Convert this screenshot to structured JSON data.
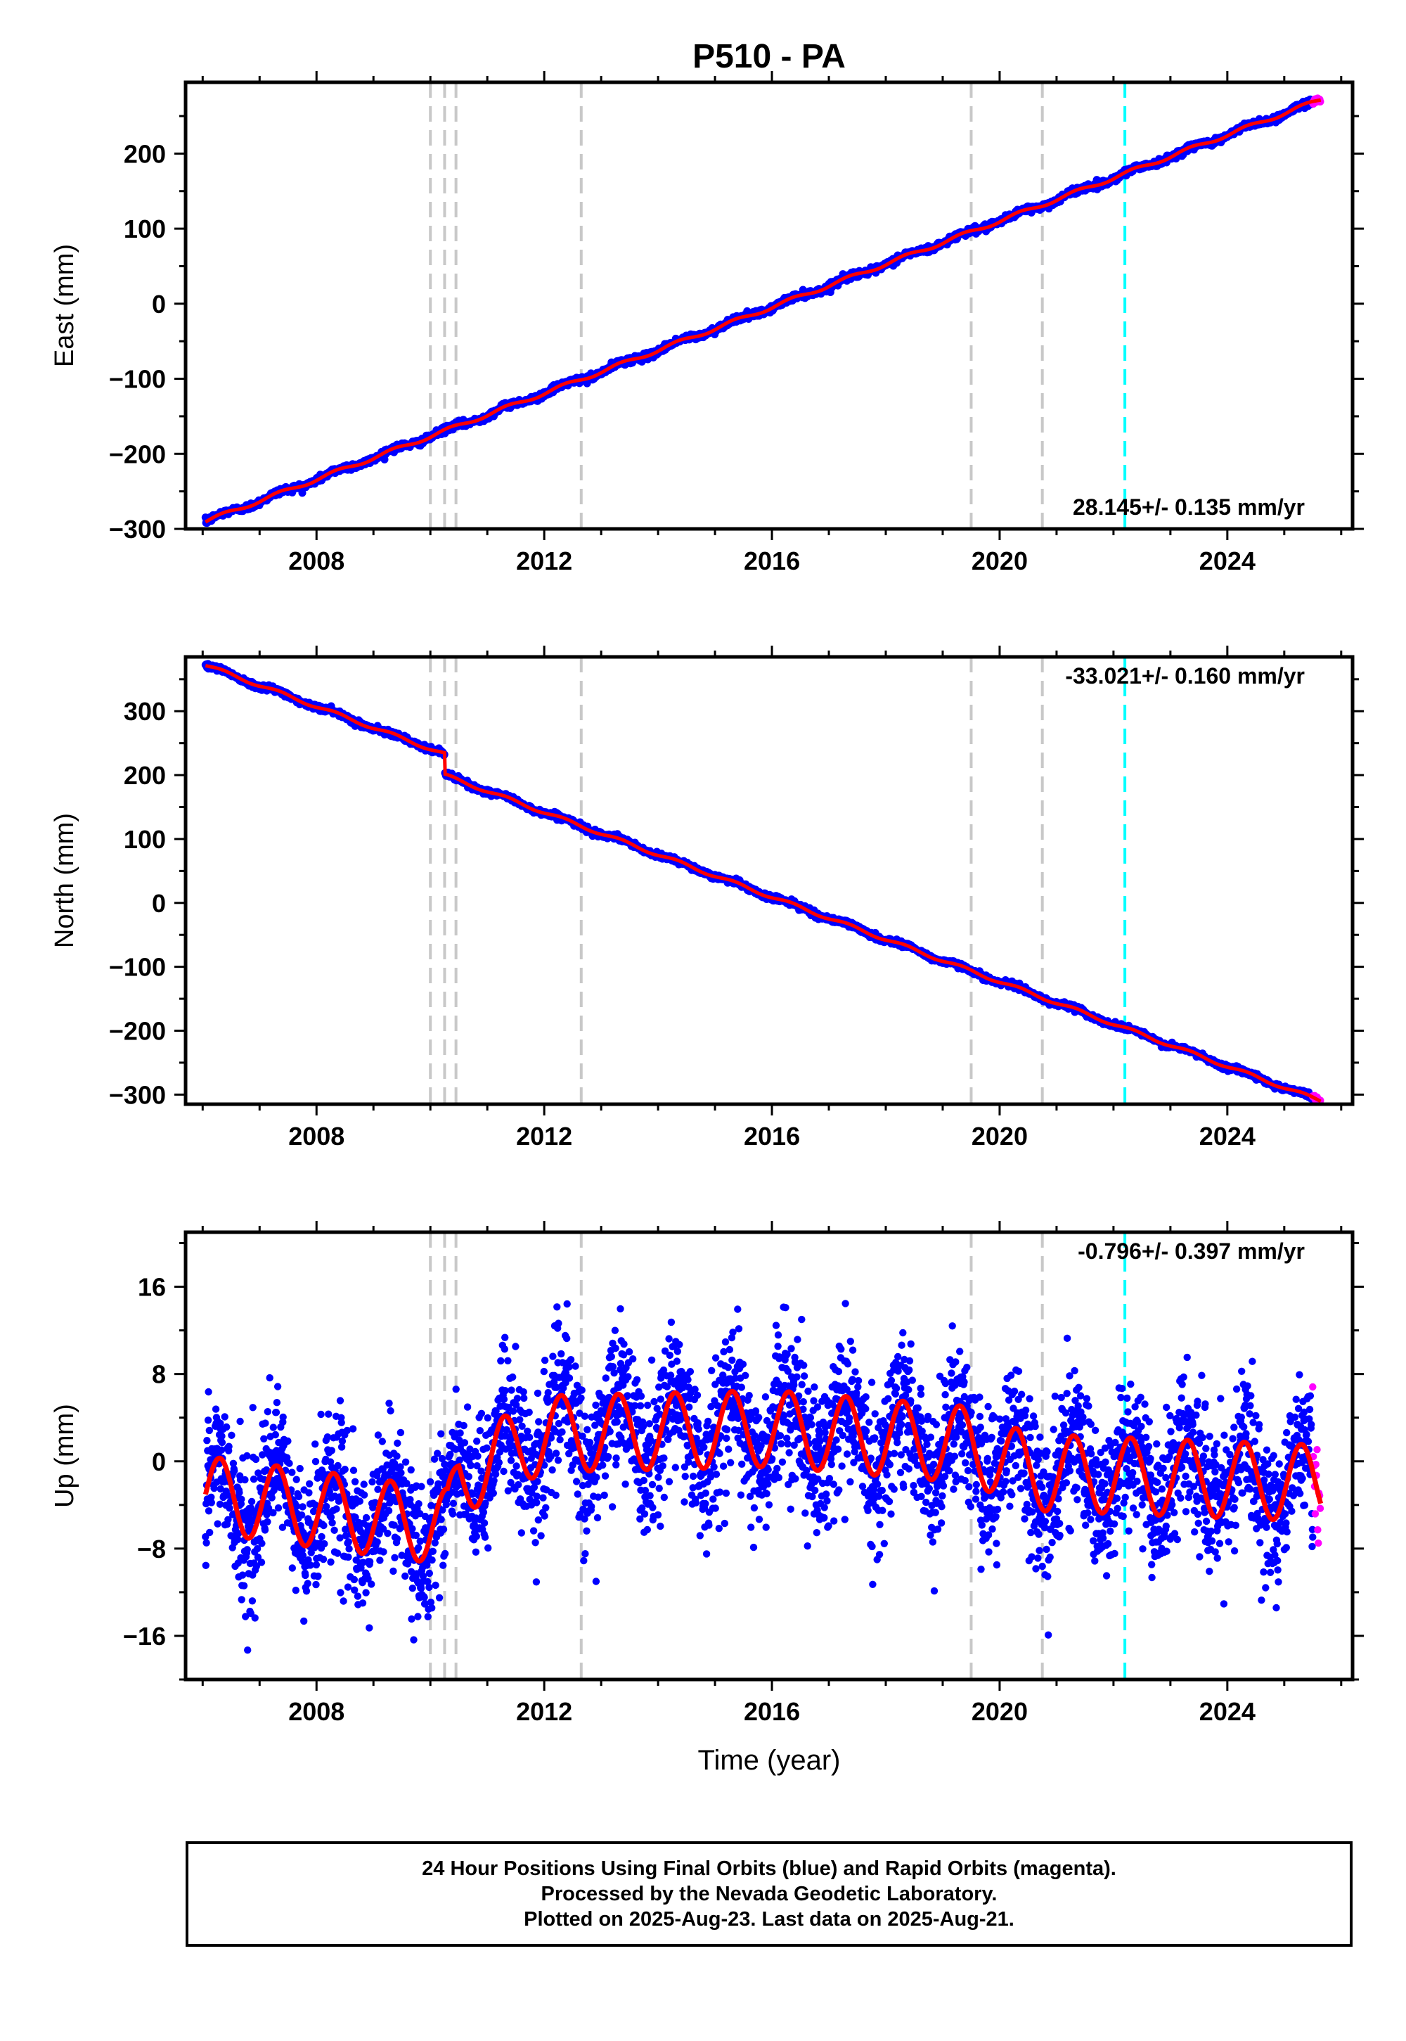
{
  "title": "P510 - PA",
  "colors": {
    "final_orbits": "#0000ff",
    "rapid_orbits": "#ff00ff",
    "model_fit": "#ff0000",
    "equipment_change": "#c8c8c8",
    "earthquake": "#00ffff"
  },
  "caption": [
    "24 Hour Positions Using Final Orbits (blue) and Rapid Orbits (magenta).",
    "Processed by the Nevada Geodetic Laboratory.",
    "Plotted on 2025-Aug-23. Last data on 2025-Aug-21."
  ],
  "chart_data": [
    {
      "type": "scatter",
      "component": "east",
      "ylabel": "East (mm)",
      "xlabel": "",
      "xlim": [
        2005.7,
        2026.2
      ],
      "ylim": [
        -300,
        295
      ],
      "xticks": [
        2008,
        2012,
        2016,
        2020,
        2024
      ],
      "yticks": [
        -300,
        -200,
        -100,
        0,
        100,
        200
      ],
      "ytick_labels": [
        "−300",
        "−200",
        "−100",
        "0",
        "100",
        "200"
      ],
      "rate_label": "28.145+/- 0.135 mm/yr",
      "series": [
        {
          "role": "final_orbits",
          "x_start": 2006.05,
          "x_end": 2025.5,
          "y_start": -290,
          "y_end": 268
        },
        {
          "role": "rapid_orbits",
          "x_start": 2025.5,
          "x_end": 2025.64,
          "y_start": 268,
          "y_end": 280
        },
        {
          "role": "model_fit",
          "x_start": 2006.05,
          "x_end": 2025.64,
          "y_start": -290,
          "y_end": 272
        }
      ],
      "dashed_lines_equipment": [
        2010.0,
        2010.25,
        2010.45,
        2012.65,
        2019.5,
        2020.75
      ],
      "dashed_lines_earthquake": [
        2022.2
      ]
    },
    {
      "type": "scatter",
      "component": "north",
      "ylabel": "North (mm)",
      "xlabel": "",
      "xlim": [
        2005.7,
        2026.2
      ],
      "ylim": [
        -315,
        385
      ],
      "xticks": [
        2008,
        2012,
        2016,
        2020,
        2024
      ],
      "yticks": [
        -300,
        -200,
        -100,
        0,
        100,
        200,
        300
      ],
      "ytick_labels": [
        "−300",
        "−200",
        "−100",
        "0",
        "100",
        "200",
        "300"
      ],
      "rate_label": "-33.021+/- 0.160 mm/yr",
      "series": [
        {
          "role": "final_orbits",
          "x_start": 2006.05,
          "x_end": 2025.5,
          "y_start": 372,
          "y_end": -305
        },
        {
          "role": "rapid_orbits",
          "x_start": 2025.5,
          "x_end": 2025.64,
          "y_start": -305,
          "y_end": -311
        },
        {
          "role": "model_fit",
          "x_start": 2006.05,
          "x_end": 2025.64,
          "y_start": 372,
          "y_end": -310
        }
      ],
      "offset_step": {
        "x": 2010.25,
        "dy": -33
      },
      "dashed_lines_equipment": [
        2010.0,
        2010.25,
        2010.45,
        2012.65,
        2019.5,
        2020.75
      ],
      "dashed_lines_earthquake": [
        2022.2
      ]
    },
    {
      "type": "scatter",
      "component": "up",
      "ylabel": "Up (mm)",
      "xlabel": "Time (year)",
      "xlim": [
        2005.7,
        2026.2
      ],
      "ylim": [
        -20,
        21
      ],
      "xticks": [
        2008,
        2012,
        2016,
        2020,
        2024
      ],
      "yticks": [
        -16,
        -8,
        0,
        8,
        16
      ],
      "ytick_labels": [
        "−16",
        "−8",
        "0",
        "8",
        "16"
      ],
      "rate_label": "-0.796+/- 0.397 mm/yr",
      "seasonal_amplitude_mm": 3.5,
      "scatter_sd_mm": 3.2,
      "baseline": [
        {
          "x": 2006.0,
          "y": -3.0
        },
        {
          "x": 2010.3,
          "y": -6.0
        },
        {
          "x": 2010.5,
          "y": -1.5
        },
        {
          "x": 2012.0,
          "y": 2.5
        },
        {
          "x": 2016.0,
          "y": 3.0
        },
        {
          "x": 2019.5,
          "y": 1.5
        },
        {
          "x": 2020.5,
          "y": -1.0
        },
        {
          "x": 2025.6,
          "y": -2.0
        }
      ],
      "series": [
        {
          "role": "final_orbits",
          "x_start": 2006.05,
          "x_end": 2025.5
        },
        {
          "role": "rapid_orbits",
          "x_start": 2025.5,
          "x_end": 2025.64
        },
        {
          "role": "model_fit",
          "x_start": 2006.05,
          "x_end": 2025.64
        }
      ],
      "dashed_lines_equipment": [
        2010.0,
        2010.25,
        2010.45,
        2012.65,
        2019.5,
        2020.75
      ],
      "dashed_lines_earthquake": [
        2022.2
      ]
    }
  ]
}
